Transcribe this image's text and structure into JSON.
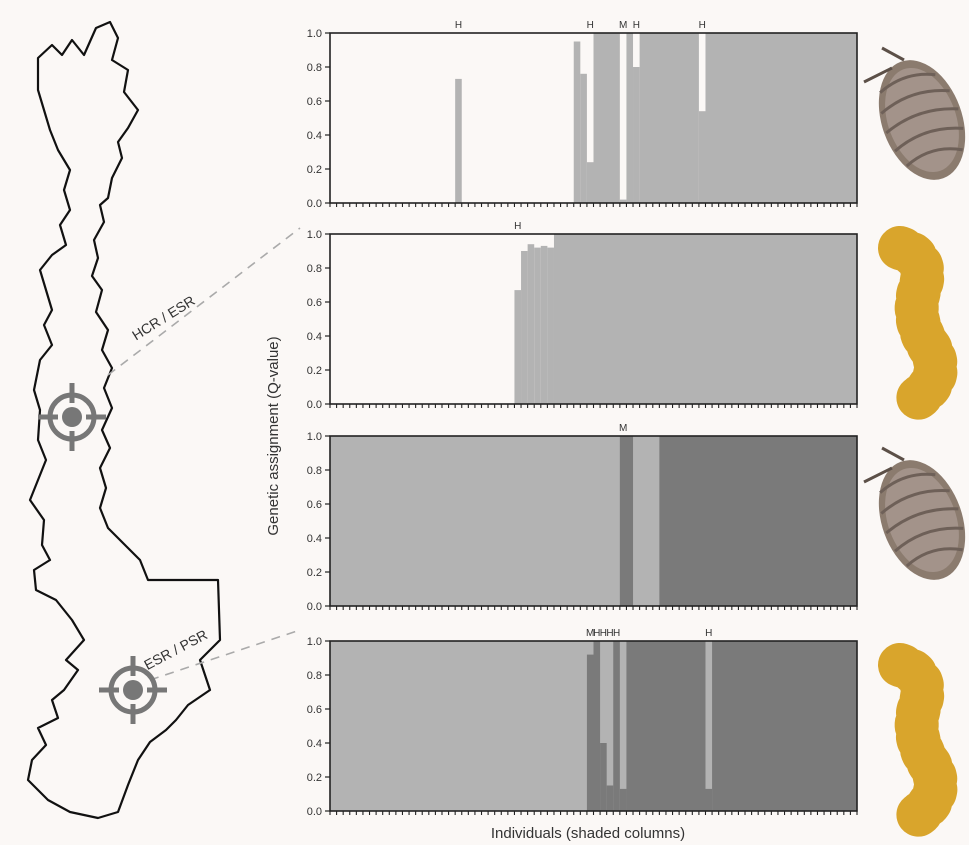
{
  "figure": {
    "y_axis_label": "Genetic assignment (Q-value)",
    "x_axis_label": "Individuals (shaded columns)"
  },
  "map": {
    "labels": [
      "HCR / ESR",
      "ESR / PSR"
    ]
  },
  "colors": {
    "light": "#fbf8f6",
    "mid": "#b3b3b3",
    "dark": "#7a7a7a",
    "axis": "#222222"
  },
  "icons": [
    "woodlouse-icon",
    "millipede-icon",
    "woodlouse-icon",
    "millipede-icon"
  ],
  "chart_data": [
    {
      "type": "bar",
      "stacked": true,
      "n_individuals": 80,
      "ylim": [
        0,
        1
      ],
      "yticks": [
        "0.0",
        "0.2",
        "0.4",
        "0.6",
        "0.8",
        "1.0"
      ],
      "base_color": "light",
      "spans": [
        {
          "from": 19,
          "to": 20,
          "value": 0.73,
          "color": "mid"
        },
        {
          "from": 37,
          "to": 38,
          "value": 0.95,
          "color": "mid"
        },
        {
          "from": 38,
          "to": 39,
          "value": 0.76,
          "color": "mid"
        },
        {
          "from": 39,
          "to": 40,
          "value": 0.24,
          "color": "mid"
        },
        {
          "from": 40,
          "to": 44,
          "value": 1.0,
          "color": "mid"
        },
        {
          "from": 44,
          "to": 45,
          "value": 0.02,
          "color": "mid"
        },
        {
          "from": 45,
          "to": 46,
          "value": 1.0,
          "color": "mid"
        },
        {
          "from": 46,
          "to": 47,
          "value": 0.8,
          "color": "mid"
        },
        {
          "from": 47,
          "to": 56,
          "value": 1.0,
          "color": "mid"
        },
        {
          "from": 56,
          "to": 57,
          "value": 0.54,
          "color": "mid"
        },
        {
          "from": 57,
          "to": 80,
          "value": 1.0,
          "color": "mid"
        }
      ],
      "markers": [
        {
          "label": "H",
          "at": 19.5
        },
        {
          "label": "H",
          "at": 39.5
        },
        {
          "label": "M",
          "at": 44.5
        },
        {
          "label": "H",
          "at": 46.5
        },
        {
          "label": "H",
          "at": 56.5
        }
      ]
    },
    {
      "type": "bar",
      "stacked": true,
      "n_individuals": 80,
      "ylim": [
        0,
        1
      ],
      "yticks": [
        "0.0",
        "0.2",
        "0.4",
        "0.6",
        "0.8",
        "1.0"
      ],
      "base_color": "light",
      "spans": [
        {
          "from": 28,
          "to": 29,
          "value": 0.67,
          "color": "mid"
        },
        {
          "from": 29,
          "to": 30,
          "value": 0.9,
          "color": "mid"
        },
        {
          "from": 30,
          "to": 31,
          "value": 0.94,
          "color": "mid"
        },
        {
          "from": 31,
          "to": 32,
          "value": 0.92,
          "color": "mid"
        },
        {
          "from": 32,
          "to": 33,
          "value": 0.93,
          "color": "mid"
        },
        {
          "from": 33,
          "to": 34,
          "value": 0.92,
          "color": "mid"
        },
        {
          "from": 34,
          "to": 80,
          "value": 1.0,
          "color": "mid"
        }
      ],
      "markers": [
        {
          "label": "H",
          "at": 28.5
        }
      ]
    },
    {
      "type": "bar",
      "stacked": true,
      "n_individuals": 80,
      "ylim": [
        0,
        1
      ],
      "yticks": [
        "0.0",
        "0.2",
        "0.4",
        "0.6",
        "0.8",
        "1.0"
      ],
      "base_color": "mid",
      "spans": [
        {
          "from": 44,
          "to": 46,
          "value": 1.0,
          "color": "dark"
        },
        {
          "from": 50,
          "to": 80,
          "value": 1.0,
          "color": "dark"
        }
      ],
      "markers": [
        {
          "label": "M",
          "at": 44.5
        }
      ]
    },
    {
      "type": "bar",
      "stacked": true,
      "n_individuals": 80,
      "ylim": [
        0,
        1
      ],
      "yticks": [
        "0.0",
        "0.2",
        "0.4",
        "0.6",
        "0.8",
        "1.0"
      ],
      "base_color": "mid",
      "spans": [
        {
          "from": 39,
          "to": 40,
          "value": 0.92,
          "color": "dark"
        },
        {
          "from": 40,
          "to": 41,
          "value": 1.0,
          "color": "dark"
        },
        {
          "from": 41,
          "to": 42,
          "value": 0.4,
          "color": "dark"
        },
        {
          "from": 42,
          "to": 43,
          "value": 0.15,
          "color": "dark"
        },
        {
          "from": 43,
          "to": 44,
          "value": 1.0,
          "color": "dark"
        },
        {
          "from": 44,
          "to": 45,
          "value": 0.13,
          "color": "dark"
        },
        {
          "from": 45,
          "to": 57,
          "value": 1.0,
          "color": "dark"
        },
        {
          "from": 57,
          "to": 58,
          "value": 0.13,
          "color": "dark"
        },
        {
          "from": 58,
          "to": 80,
          "value": 1.0,
          "color": "dark"
        }
      ],
      "markers": [
        {
          "label": "M",
          "at": 39.5
        },
        {
          "label": "H",
          "at": 40.5
        },
        {
          "label": "H",
          "at": 41.5
        },
        {
          "label": "H",
          "at": 42.5
        },
        {
          "label": "H",
          "at": 43.5
        },
        {
          "label": "H",
          "at": 57.5
        }
      ]
    }
  ]
}
